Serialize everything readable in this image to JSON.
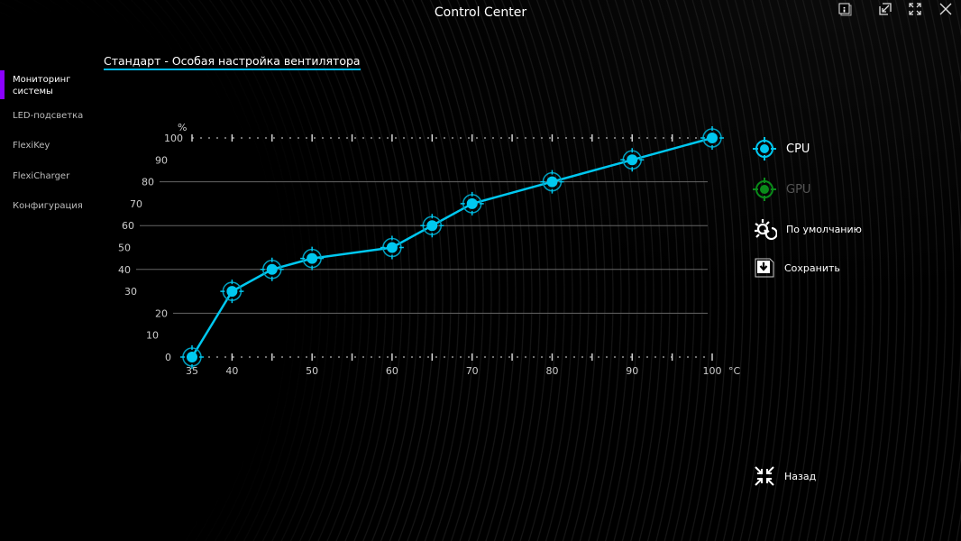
{
  "window": {
    "title": "Control Center",
    "buttons": [
      "info",
      "restore",
      "fullscreen",
      "close"
    ]
  },
  "sidebar": {
    "items": [
      {
        "label": "Мониторинг\nсистемы",
        "active": true
      },
      {
        "label": "LED-подсветка"
      },
      {
        "label": "FlexiKey"
      },
      {
        "label": "FlexiCharger"
      },
      {
        "label": "Конфигурация"
      }
    ]
  },
  "heading": "Стандарт - Особая настройка вентилятора",
  "colors": {
    "accent": "#8b00ff",
    "cpu": "#00c8f0",
    "gpu": "#0a8a1a",
    "underline": "#00b7e8"
  },
  "chart_data": {
    "type": "line",
    "ylabel": "%",
    "xunit": "°C",
    "xlim": [
      35,
      100
    ],
    "ylim": [
      0,
      100
    ],
    "xticks": [
      35,
      40,
      50,
      60,
      70,
      80,
      90,
      100
    ],
    "yticks": [
      0,
      10,
      20,
      30,
      40,
      50,
      60,
      70,
      80,
      90,
      100
    ],
    "series": [
      {
        "name": "CPU",
        "x": [
          35,
          40,
          45,
          50,
          60,
          65,
          70,
          80,
          90,
          100
        ],
        "y": [
          0,
          30,
          40,
          45,
          50,
          60,
          70,
          80,
          90,
          100
        ]
      }
    ]
  },
  "panel": {
    "cpu": "CPU",
    "gpu": "GPU",
    "default": "По умолчанию",
    "save": "Сохранить",
    "back": "Назад"
  }
}
